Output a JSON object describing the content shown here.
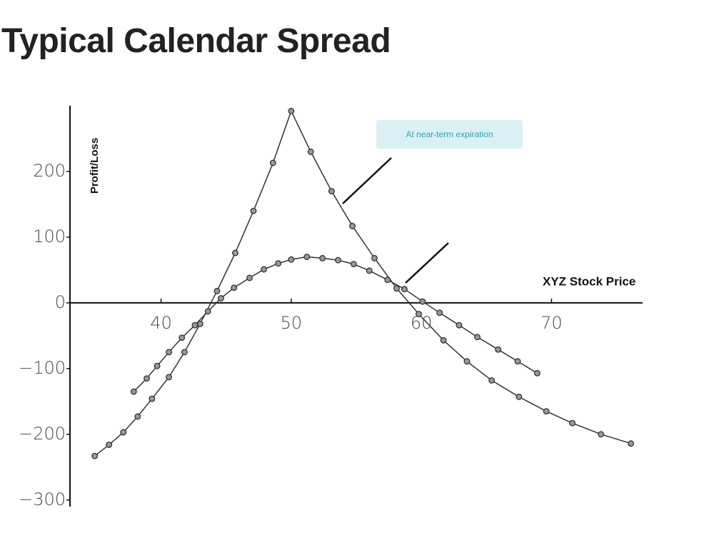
{
  "chart_data": {
    "type": "line",
    "title": "Typical Calendar Spread",
    "y_label": "Profit/Loss",
    "x_label": "XYZ Stock Price",
    "annotation": "At near-term expiration",
    "xlim": [
      33,
      77
    ],
    "ylim": [
      -310,
      300
    ],
    "xticks": [
      40,
      50,
      60,
      70
    ],
    "yticks": [
      {
        "value": -300,
        "label": "−300"
      },
      {
        "value": -200,
        "label": "−200"
      },
      {
        "value": -100,
        "label": "−100"
      },
      0,
      100,
      200
    ],
    "series": [
      {
        "color": "#333333",
        "x": [
          34.9,
          36.0,
          37.1,
          38.2,
          39.3,
          40.6,
          41.8,
          43.0,
          44.3,
          45.7,
          47.1,
          48.6,
          50.0,
          51.5,
          53.1,
          54.7,
          56.4,
          58.1,
          59.8,
          61.7,
          63.5,
          65.4,
          67.5,
          69.6,
          71.6,
          73.8,
          76.1
        ],
        "values": [
          -233,
          -216,
          -197,
          -173,
          -146,
          -113,
          -75,
          -32,
          18,
          76,
          140,
          213,
          292,
          230,
          170,
          117,
          68,
          22,
          -17,
          -57,
          -89,
          -118,
          -143,
          -165,
          -183,
          -200,
          -214
        ]
      },
      {
        "color": "#333333",
        "x": [
          37.9,
          38.9,
          39.7,
          40.6,
          41.6,
          42.6,
          43.6,
          44.6,
          45.6,
          46.8,
          47.9,
          49.0,
          50.0,
          51.2,
          52.4,
          53.6,
          54.8,
          56.0,
          57.4,
          58.7,
          60.1,
          61.4,
          62.9,
          64.3,
          65.9,
          67.4,
          68.9
        ],
        "values": [
          -135,
          -115,
          -96,
          -75,
          -53,
          -34,
          -13,
          7,
          23,
          38,
          51,
          60,
          66,
          70,
          68,
          65,
          59,
          49,
          35,
          21,
          2,
          -15,
          -34,
          -52,
          -71,
          -89,
          -107
        ]
      }
    ]
  }
}
